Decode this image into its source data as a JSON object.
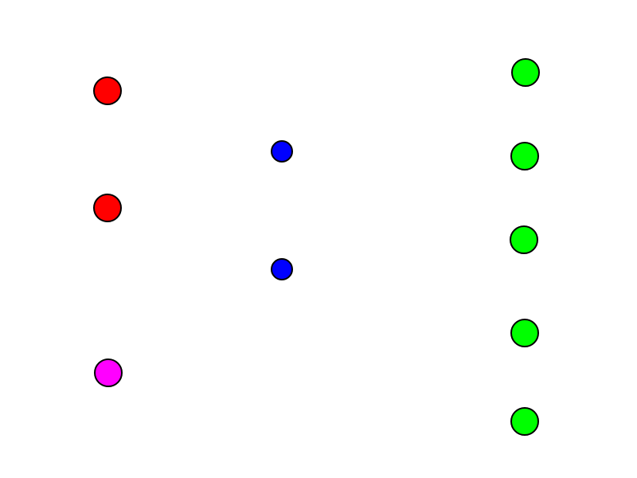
{
  "diagram": {
    "groups": [
      {
        "id": "red",
        "color": "#ff0000",
        "nodes": [
          {
            "id": "red-1"
          },
          {
            "id": "red-2"
          }
        ]
      },
      {
        "id": "magenta",
        "color": "#ff00ff",
        "nodes": [
          {
            "id": "magenta-1"
          }
        ]
      },
      {
        "id": "blue",
        "color": "#0000ff",
        "nodes": [
          {
            "id": "blue-1"
          },
          {
            "id": "blue-2"
          }
        ]
      },
      {
        "id": "green",
        "color": "#00ff00",
        "nodes": [
          {
            "id": "green-1"
          },
          {
            "id": "green-2"
          },
          {
            "id": "green-3"
          },
          {
            "id": "green-4"
          },
          {
            "id": "green-5"
          }
        ]
      }
    ]
  }
}
